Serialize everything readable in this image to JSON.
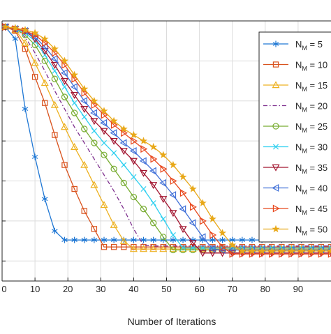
{
  "chart_data": {
    "type": "line",
    "title": "",
    "xlabel": "Number of Iterations",
    "ylabel": "",
    "xlim": [
      0,
      100
    ],
    "ylim": [
      0,
      13
    ],
    "x_ticks": [
      0,
      10,
      20,
      30,
      40,
      50,
      60,
      70,
      80,
      90
    ],
    "x_tick_labels": [
      "0",
      "10",
      "20",
      "30",
      "40",
      "50",
      "60",
      "70",
      "80",
      "90"
    ],
    "grid": true,
    "legend_position": "top-right",
    "series": [
      {
        "name_main": "N",
        "name_sub": "M",
        "name_rest": " = 5",
        "color": "#1f77d4",
        "marker": "asterisk",
        "dash": "solid",
        "x": [
          1,
          4,
          7,
          10,
          13,
          16,
          19
        ],
        "y": [
          12.7,
          12.1,
          8.6,
          6.2,
          4.1,
          2.5,
          2.05
        ]
      },
      {
        "name_main": "N",
        "name_sub": "M",
        "name_rest": " = 10",
        "color": "#d9531e",
        "marker": "square",
        "dash": "solid",
        "x": [
          1,
          4,
          7,
          10,
          13,
          16,
          19,
          22,
          25,
          28,
          31
        ],
        "y": [
          12.7,
          12.5,
          11.6,
          10.2,
          8.9,
          7.3,
          5.8,
          4.6,
          3.5,
          2.6,
          1.7
        ]
      },
      {
        "name_main": "N",
        "name_sub": "M",
        "name_rest": " = 15",
        "color": "#edb120",
        "marker": "triangle",
        "dash": "solid",
        "x": [
          1,
          4,
          7,
          10,
          13,
          16,
          19,
          22,
          25,
          28,
          31,
          34,
          37,
          40
        ],
        "y": [
          12.7,
          12.55,
          11.9,
          10.9,
          9.9,
          8.8,
          7.7,
          6.7,
          5.8,
          4.8,
          3.8,
          2.8,
          2.0,
          1.6
        ]
      },
      {
        "name_main": "N",
        "name_sub": "M",
        "name_rest": " = 20",
        "color": "#7e2f8e",
        "marker": "none",
        "dash": "dashdot",
        "x": [
          1,
          4,
          7,
          10,
          13,
          16,
          19,
          22,
          25,
          28,
          31,
          34,
          37,
          40,
          43
        ],
        "y": [
          12.7,
          12.6,
          12.2,
          11.4,
          10.5,
          9.5,
          8.6,
          7.7,
          6.9,
          6.1,
          5.3,
          4.5,
          3.6,
          2.6,
          1.8
        ]
      },
      {
        "name_main": "N",
        "name_sub": "M",
        "name_rest": " = 25",
        "color": "#77ac30",
        "marker": "circle",
        "dash": "solid",
        "x": [
          1,
          4,
          7,
          10,
          13,
          16,
          19,
          22,
          25,
          28,
          31,
          34,
          37,
          40,
          43,
          46,
          49
        ],
        "y": [
          12.7,
          12.6,
          12.3,
          11.8,
          11.0,
          10.1,
          9.2,
          8.4,
          7.6,
          6.9,
          6.3,
          5.6,
          4.9,
          4.2,
          3.6,
          2.9,
          2.2
        ]
      },
      {
        "name_main": "N",
        "name_sub": "M",
        "name_rest": " = 30",
        "color": "#2fd0f0",
        "marker": "cross",
        "dash": "solid",
        "x": [
          1,
          4,
          7,
          10,
          13,
          16,
          19,
          22,
          25,
          28,
          31,
          34,
          37,
          40,
          43,
          46,
          49,
          52
        ],
        "y": [
          12.7,
          12.6,
          12.4,
          12.0,
          11.3,
          10.5,
          9.7,
          8.9,
          8.2,
          7.5,
          6.9,
          6.4,
          5.8,
          5.2,
          4.6,
          3.9,
          3.1,
          2.3
        ]
      },
      {
        "name_main": "N",
        "name_sub": "M",
        "name_rest": " = 35",
        "color": "#a2142f",
        "marker": "triangle-down",
        "dash": "solid",
        "x": [
          1,
          4,
          7,
          10,
          13,
          16,
          19,
          22,
          25,
          28,
          31,
          34,
          37,
          40,
          43,
          46,
          49,
          52,
          55,
          58
        ],
        "y": [
          12.7,
          12.6,
          12.5,
          12.1,
          11.5,
          10.8,
          10.0,
          9.3,
          8.6,
          8.0,
          7.5,
          7.0,
          6.5,
          6.0,
          5.4,
          4.8,
          4.1,
          3.4,
          2.6,
          1.9
        ]
      },
      {
        "name_main": "N",
        "name_sub": "M",
        "name_rest": " = 40",
        "color": "#4070d8",
        "marker": "triangle-left",
        "dash": "solid",
        "x": [
          1,
          4,
          7,
          10,
          13,
          16,
          19,
          22,
          25,
          28,
          31,
          34,
          37,
          40,
          43,
          46,
          49,
          52,
          55,
          58,
          61,
          64
        ],
        "y": [
          12.7,
          12.6,
          12.5,
          12.2,
          11.7,
          11.1,
          10.4,
          9.7,
          9.0,
          8.4,
          7.9,
          7.4,
          6.9,
          6.5,
          6.0,
          5.5,
          4.9,
          4.3,
          3.6,
          2.9,
          2.2,
          1.6
        ]
      },
      {
        "name_main": "N",
        "name_sub": "M",
        "name_rest": " = 45",
        "color": "#e8471c",
        "marker": "triangle-right",
        "dash": "solid",
        "x": [
          1,
          4,
          7,
          10,
          13,
          16,
          19,
          22,
          25,
          28,
          31,
          34,
          37,
          40,
          43,
          46,
          49,
          52,
          55,
          58,
          61,
          64,
          67
        ],
        "y": [
          12.7,
          12.6,
          12.5,
          12.3,
          11.9,
          11.4,
          10.8,
          10.1,
          9.4,
          8.8,
          8.3,
          7.8,
          7.4,
          7.0,
          6.6,
          6.1,
          5.6,
          5.0,
          4.4,
          3.7,
          3.0,
          2.3,
          1.7
        ]
      },
      {
        "name_main": "N",
        "name_sub": "M",
        "name_rest": " = 50",
        "color": "#e8a818",
        "marker": "star",
        "dash": "solid",
        "x": [
          1,
          4,
          7,
          10,
          13,
          16,
          19,
          22,
          25,
          28,
          31,
          34,
          37,
          40,
          43,
          46,
          49,
          52,
          55,
          58,
          61,
          64,
          67,
          70
        ],
        "y": [
          12.7,
          12.65,
          12.55,
          12.4,
          12.1,
          11.6,
          11.0,
          10.3,
          9.6,
          9.0,
          8.5,
          8.0,
          7.6,
          7.3,
          7.0,
          6.7,
          6.3,
          5.8,
          5.2,
          4.6,
          3.9,
          3.1,
          2.4,
          1.8
        ]
      }
    ],
    "plateau": {
      "x_end": 100,
      "values": [
        2.05,
        1.7,
        1.6,
        1.75,
        1.55,
        1.65,
        1.4,
        1.55,
        1.35,
        1.5
      ],
      "marker_spacing": 3
    }
  }
}
